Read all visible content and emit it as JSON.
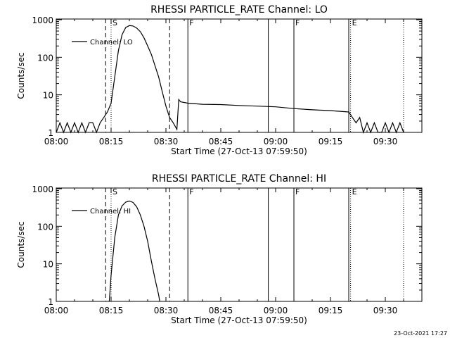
{
  "chart_data": [
    {
      "type": "line",
      "title": "RHESSI PARTICLE_RATE Channel: LO",
      "xlabel": "Start Time (27-Oct-13 07:59:50)",
      "ylabel": "Counts/sec",
      "xlim": [
        "08:00",
        "09:40"
      ],
      "ylim": [
        1,
        1000
      ],
      "yscale": "log",
      "x_ticks": [
        "08:00",
        "08:15",
        "08:30",
        "08:45",
        "09:00",
        "09:15",
        "09:30"
      ],
      "y_ticks": [
        "1",
        "10",
        "100",
        "1000"
      ],
      "legend": {
        "position": "top-left",
        "entries": [
          "Channel: LO"
        ]
      },
      "series": [
        {
          "name": "Channel: LO",
          "points": [
            [
              "08:00",
              1.0
            ],
            [
              "08:01",
              1.8
            ],
            [
              "08:02",
              1.0
            ],
            [
              "08:03",
              1.8
            ],
            [
              "08:04",
              1.0
            ],
            [
              "08:05",
              1.8
            ],
            [
              "08:06",
              1.0
            ],
            [
              "08:07",
              1.8
            ],
            [
              "08:08",
              1.0
            ],
            [
              "08:09",
              1.8
            ],
            [
              "08:10",
              1.8
            ],
            [
              "08:11",
              1.0
            ],
            [
              "08:12",
              1.8
            ],
            [
              "08:13",
              2.5
            ],
            [
              "08:14",
              3.5
            ],
            [
              "08:15",
              6
            ],
            [
              "08:16",
              30
            ],
            [
              "08:17",
              150
            ],
            [
              "08:18",
              400
            ],
            [
              "08:19",
              620
            ],
            [
              "08:20",
              700
            ],
            [
              "08:21",
              680
            ],
            [
              "08:22",
              600
            ],
            [
              "08:23",
              480
            ],
            [
              "08:24",
              330
            ],
            [
              "08:25",
              200
            ],
            [
              "08:26",
              120
            ],
            [
              "08:27",
              60
            ],
            [
              "08:28",
              30
            ],
            [
              "08:29",
              12
            ],
            [
              "08:30",
              5
            ],
            [
              "08:31",
              2.5
            ],
            [
              "08:32",
              1.8
            ],
            [
              "08:33",
              1.2
            ],
            [
              "08:33.5",
              7.5
            ],
            [
              "08:34",
              6.5
            ],
            [
              "08:36",
              6
            ],
            [
              "08:40",
              5.6
            ],
            [
              "08:45",
              5.5
            ],
            [
              "08:50",
              5.2
            ],
            [
              "08:55",
              5.0
            ],
            [
              "09:00",
              4.8
            ],
            [
              "09:05",
              4.3
            ],
            [
              "09:10",
              4.0
            ],
            [
              "09:15",
              3.8
            ],
            [
              "09:20",
              3.5
            ],
            [
              "09:21",
              2.5
            ],
            [
              "09:22",
              1.8
            ],
            [
              "09:23",
              2.5
            ],
            [
              "09:24",
              1.0
            ],
            [
              "09:25",
              1.8
            ],
            [
              "09:26",
              1.0
            ],
            [
              "09:27",
              1.8
            ],
            [
              "09:28",
              1.0
            ],
            [
              "09:29",
              1.0
            ],
            [
              "09:30",
              1.8
            ],
            [
              "09:31",
              1.0
            ],
            [
              "09:32",
              1.8
            ],
            [
              "09:33",
              1.0
            ],
            [
              "09:34",
              1.8
            ],
            [
              "09:35",
              1.0
            ]
          ]
        }
      ],
      "markers": [
        {
          "time": "08:13.5",
          "style": "dashed",
          "label": ""
        },
        {
          "time": "08:15",
          "style": "dotted",
          "label": "S"
        },
        {
          "time": "08:31",
          "style": "dashed",
          "label": ""
        },
        {
          "time": "08:36",
          "style": "solid",
          "label": "F"
        },
        {
          "time": "08:58",
          "style": "solid",
          "label": ""
        },
        {
          "time": "09:05",
          "style": "solid",
          "label": "F"
        },
        {
          "time": "09:20",
          "style": "solid",
          "label": ""
        },
        {
          "time": "09:20.5",
          "style": "dotted",
          "label": "E"
        },
        {
          "time": "09:35",
          "style": "dotted",
          "label": ""
        }
      ]
    },
    {
      "type": "line",
      "title": "RHESSI PARTICLE_RATE Channel: HI",
      "xlabel": "Start Time (27-Oct-13 07:59:50)",
      "ylabel": "Counts/sec",
      "xlim": [
        "08:00",
        "09:40"
      ],
      "ylim": [
        1,
        1000
      ],
      "yscale": "log",
      "x_ticks": [
        "08:00",
        "08:15",
        "08:30",
        "08:45",
        "09:00",
        "09:15",
        "09:30"
      ],
      "y_ticks": [
        "1",
        "10",
        "100",
        "1000"
      ],
      "legend": {
        "position": "top-left",
        "entries": [
          "Channel: HI"
        ]
      },
      "series": [
        {
          "name": "Channel: HI",
          "points": [
            [
              "08:14.5",
              1.0
            ],
            [
              "08:15",
              5
            ],
            [
              "08:16",
              50
            ],
            [
              "08:17",
              200
            ],
            [
              "08:18",
              350
            ],
            [
              "08:19",
              440
            ],
            [
              "08:20",
              470
            ],
            [
              "08:21",
              430
            ],
            [
              "08:22",
              330
            ],
            [
              "08:23",
              200
            ],
            [
              "08:24",
              100
            ],
            [
              "08:25",
              40
            ],
            [
              "08:26",
              12
            ],
            [
              "08:27",
              4
            ],
            [
              "08:28",
              1.5
            ],
            [
              "08:28.3",
              1.0
            ]
          ]
        }
      ],
      "markers": [
        {
          "time": "08:13.5",
          "style": "dashed",
          "label": ""
        },
        {
          "time": "08:15",
          "style": "dotted",
          "label": "S"
        },
        {
          "time": "08:31",
          "style": "dashed",
          "label": ""
        },
        {
          "time": "08:36",
          "style": "solid",
          "label": "F"
        },
        {
          "time": "08:58",
          "style": "solid",
          "label": ""
        },
        {
          "time": "09:05",
          "style": "solid",
          "label": "F"
        },
        {
          "time": "09:20",
          "style": "solid",
          "label": ""
        },
        {
          "time": "09:20.5",
          "style": "dotted",
          "label": "E"
        },
        {
          "time": "09:35",
          "style": "dotted",
          "label": ""
        }
      ]
    }
  ],
  "footer": {
    "timestamp": "23-Oct-2021 17:27"
  }
}
